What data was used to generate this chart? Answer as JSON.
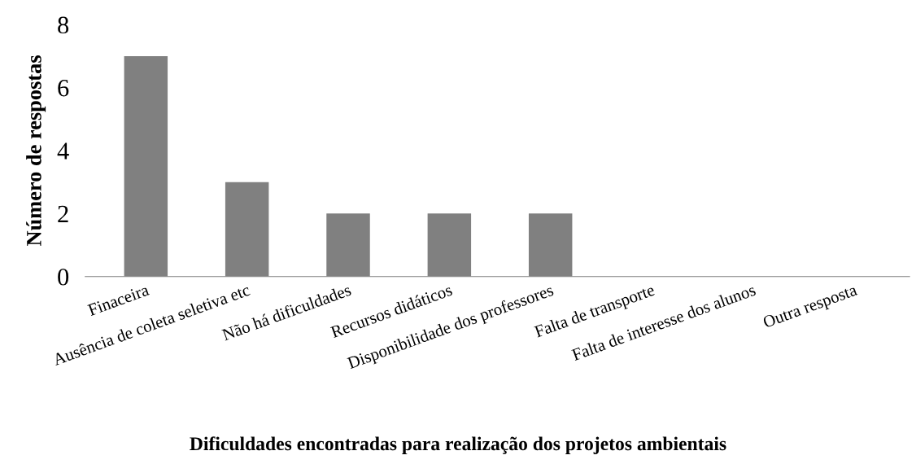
{
  "chart_data": {
    "type": "bar",
    "xlabel": "Dificuldades encontradas para realização dos projetos ambientais",
    "ylabel": "Número de respostas",
    "categories": [
      "Finaceira",
      "Ausência de coleta seletiva etc",
      "Não há dificuldades",
      "Recursos didáticos",
      "Disponibilidade dos professores",
      "Falta de transporte",
      "Falta de interesse dos alunos",
      "Outra resposta"
    ],
    "values": [
      7,
      3,
      2,
      2,
      2,
      0,
      0,
      0
    ],
    "color": "#808080",
    "ylim": [
      0,
      8
    ],
    "yticks": [
      0,
      2,
      4,
      6,
      8
    ],
    "grid": false,
    "legend": false
  }
}
